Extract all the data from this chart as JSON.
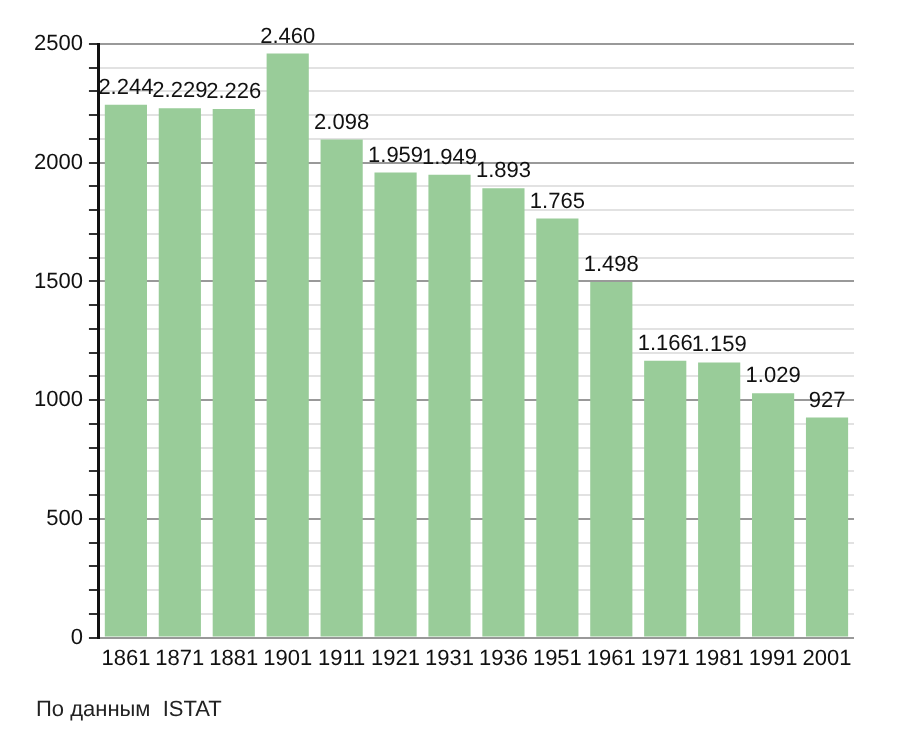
{
  "chart_data": {
    "type": "bar",
    "categories": [
      "1861",
      "1871",
      "1881",
      "1901",
      "1911",
      "1921",
      "1931",
      "1936",
      "1951",
      "1961",
      "1971",
      "1981",
      "1991",
      "2001"
    ],
    "values": [
      2244,
      2229,
      2226,
      2460,
      2098,
      1959,
      1949,
      1893,
      1765,
      1498,
      1166,
      1159,
      1029,
      927
    ],
    "value_labels": [
      "2.244",
      "2.229",
      "2.226",
      "2.460",
      "2.098",
      "1.959",
      "1.949",
      "1.893",
      "1.765",
      "1.498",
      "1.166",
      "1.159",
      "1.029",
      "927"
    ],
    "color": "#99cc99",
    "ylim": [
      0,
      2500
    ],
    "yticks": [
      0,
      {
        "value": 100,
        "label": null
      },
      {
        "value": 200,
        "label": null
      },
      {
        "value": 300,
        "label": null
      },
      {
        "value": 400,
        "label": null
      },
      500,
      {
        "value": 600,
        "label": null
      },
      {
        "value": 700,
        "label": null
      },
      {
        "value": 800,
        "label": null
      },
      {
        "value": 900,
        "label": null
      },
      1000,
      {
        "value": 1100,
        "label": null
      },
      {
        "value": 1200,
        "label": null
      },
      {
        "value": 1300,
        "label": null
      },
      {
        "value": 1400,
        "label": null
      },
      1500,
      {
        "value": 1600,
        "label": null
      },
      {
        "value": 1700,
        "label": null
      },
      {
        "value": 1800,
        "label": null
      },
      {
        "value": 1900,
        "label": null
      },
      2000,
      {
        "value": 2100,
        "label": null
      },
      {
        "value": 2200,
        "label": null
      },
      {
        "value": 2300,
        "label": null
      },
      {
        "value": 2400,
        "label": null
      },
      2500
    ],
    "grid": "y",
    "annotations": [
      "По данным  ISTAT"
    ]
  }
}
